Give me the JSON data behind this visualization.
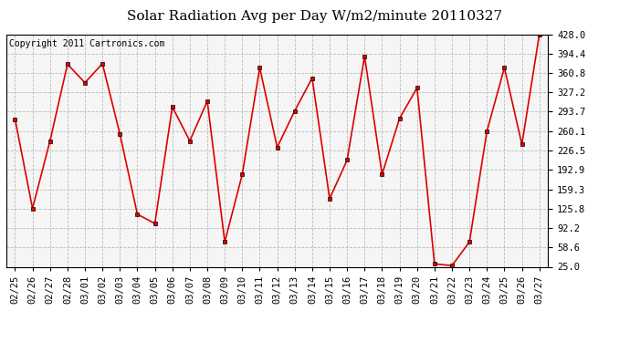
{
  "title": "Solar Radiation Avg per Day W/m2/minute 20110327",
  "copyright": "Copyright 2011 Cartronics.com",
  "labels": [
    "02/25",
    "02/26",
    "02/27",
    "02/28",
    "03/01",
    "03/02",
    "03/03",
    "03/04",
    "03/05",
    "03/06",
    "03/07",
    "03/08",
    "03/09",
    "03/10",
    "03/11",
    "03/12",
    "03/13",
    "03/14",
    "03/15",
    "03/16",
    "03/17",
    "03/18",
    "03/19",
    "03/20",
    "03/21",
    "03/22",
    "03/23",
    "03/24",
    "03/25",
    "03/26",
    "03/27"
  ],
  "values": [
    281.0,
    126.0,
    243.0,
    376.0,
    344.0,
    377.0,
    255.0,
    116.0,
    100.0,
    302.0,
    243.0,
    312.0,
    68.0,
    185.0,
    370.0,
    232.0,
    295.0,
    352.0,
    143.0,
    210.0,
    390.0,
    185.0,
    282.0,
    335.0,
    30.0,
    27.0,
    68.0,
    260.0,
    370.0,
    237.0,
    428.0
  ],
  "line_color": "#dd0000",
  "marker_color": "#dd0000",
  "bg_color": "#ffffff",
  "plot_bg_color": "#f5f5f5",
  "grid_color": "#bbbbbb",
  "ylim": [
    25.0,
    428.0
  ],
  "yticks": [
    25.0,
    58.6,
    92.2,
    125.8,
    159.3,
    192.9,
    226.5,
    260.1,
    293.7,
    327.2,
    360.8,
    394.4,
    428.0
  ],
  "title_fontsize": 11,
  "copyright_fontsize": 7,
  "tick_fontsize": 7.5
}
